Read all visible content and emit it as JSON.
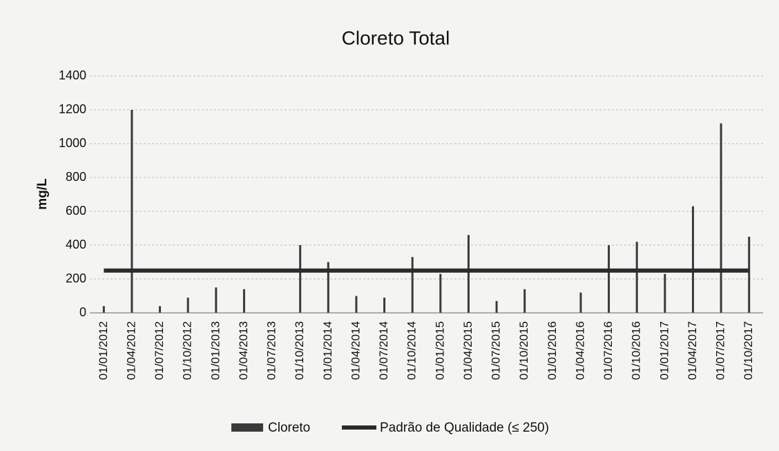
{
  "chart_data": {
    "type": "bar",
    "title": "Cloreto Total",
    "y_label": "mg/L",
    "categories": [
      "01/01/2012",
      "01/04/2012",
      "01/07/2012",
      "01/10/2012",
      "01/01/2013",
      "01/04/2013",
      "01/07/2013",
      "01/10/2013",
      "01/01/2014",
      "01/04/2014",
      "01/07/2014",
      "01/10/2014",
      "01/01/2015",
      "01/04/2015",
      "01/07/2015",
      "01/10/2015",
      "01/01/2016",
      "01/04/2016",
      "01/07/2016",
      "01/10/2016",
      "01/01/2017",
      "01/04/2017",
      "01/07/2017",
      "01/10/2017"
    ],
    "series": [
      {
        "name": "Cloreto",
        "type": "bar",
        "color": "#3a3a3a",
        "values": [
          40,
          1200,
          40,
          90,
          150,
          140,
          null,
          400,
          300,
          100,
          90,
          330,
          230,
          460,
          70,
          140,
          null,
          120,
          400,
          420,
          230,
          630,
          1120,
          450
        ]
      },
      {
        "name": "Padrão de Qualidade (≤ 250)",
        "type": "line",
        "color": "#2b2b2b",
        "values": [
          250,
          250,
          250,
          250,
          250,
          250,
          250,
          250,
          250,
          250,
          250,
          250,
          250,
          250,
          250,
          250,
          250,
          250,
          250,
          250,
          250,
          250,
          250,
          250
        ]
      }
    ],
    "ylim": [
      0,
      1400
    ],
    "yticks": [
      0,
      200,
      400,
      600,
      800,
      1000,
      1200,
      1400
    ],
    "grid": true,
    "legend": "bottom"
  }
}
